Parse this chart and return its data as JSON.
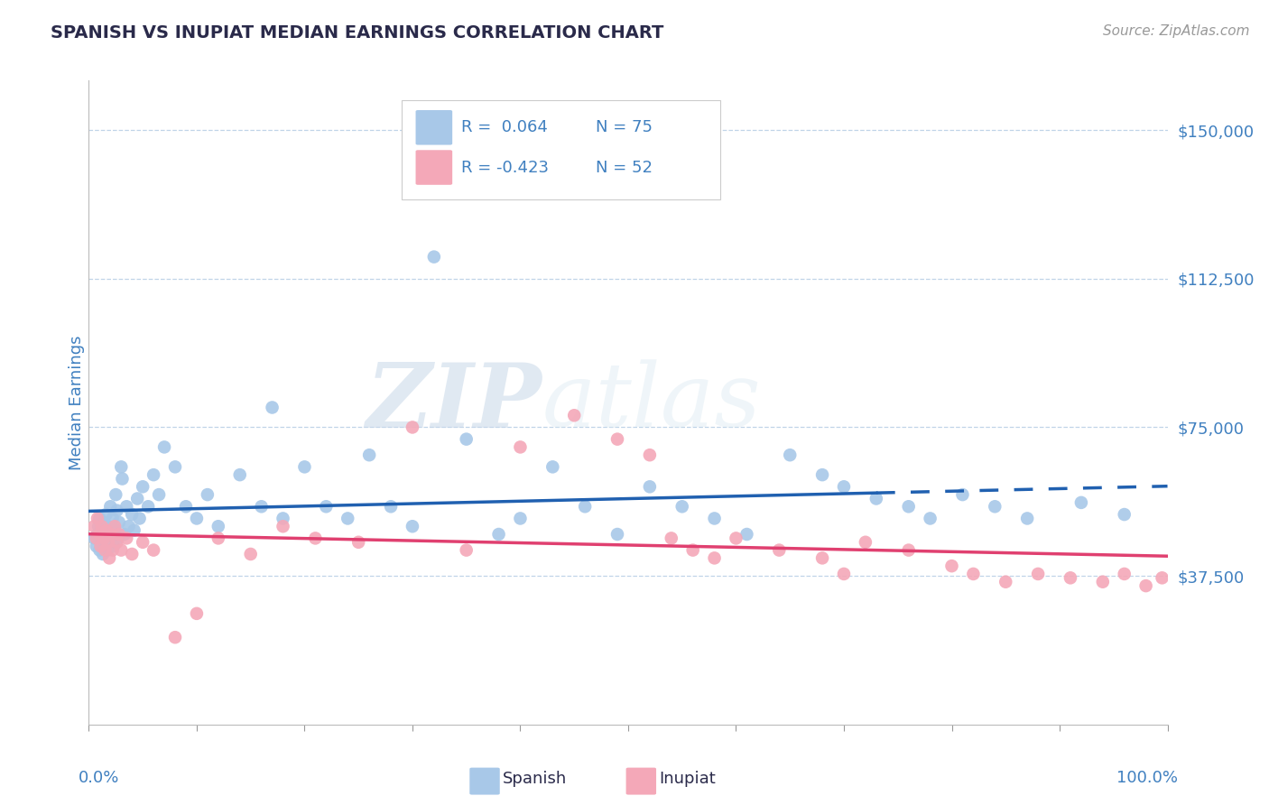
{
  "title": "SPANISH VS INUPIAT MEDIAN EARNINGS CORRELATION CHART",
  "source_text": "Source: ZipAtlas.com",
  "ylabel": "Median Earnings",
  "yticks": [
    0,
    37500,
    75000,
    112500,
    150000
  ],
  "ytick_labels": [
    "",
    "$37,500",
    "$75,000",
    "$112,500",
    "$150,000"
  ],
  "ylim": [
    0,
    162500
  ],
  "xlim": [
    0,
    1.0
  ],
  "spanish_color": "#a8c8e8",
  "inupiat_color": "#f4a8b8",
  "spanish_line_color": "#2060b0",
  "inupiat_line_color": "#e04070",
  "legend_R_spanish": "R =  0.064",
  "legend_N_spanish": "N = 75",
  "legend_R_inupiat": "R = -0.423",
  "legend_N_inupiat": "N = 52",
  "background_color": "#ffffff",
  "grid_color": "#c0d4e8",
  "title_color": "#2a2a4a",
  "axis_label_color": "#4080c0",
  "watermark_ZIP": "ZIP",
  "watermark_atlas": "atlas",
  "spanish_x": [
    0.005,
    0.007,
    0.008,
    0.009,
    0.01,
    0.01,
    0.011,
    0.012,
    0.013,
    0.014,
    0.015,
    0.016,
    0.017,
    0.018,
    0.019,
    0.02,
    0.021,
    0.022,
    0.023,
    0.024,
    0.025,
    0.026,
    0.027,
    0.028,
    0.03,
    0.031,
    0.033,
    0.035,
    0.037,
    0.04,
    0.042,
    0.045,
    0.047,
    0.05,
    0.055,
    0.06,
    0.065,
    0.07,
    0.08,
    0.09,
    0.1,
    0.11,
    0.12,
    0.14,
    0.16,
    0.17,
    0.18,
    0.2,
    0.22,
    0.24,
    0.26,
    0.28,
    0.3,
    0.32,
    0.35,
    0.38,
    0.4,
    0.43,
    0.46,
    0.49,
    0.52,
    0.55,
    0.58,
    0.61,
    0.65,
    0.68,
    0.7,
    0.73,
    0.76,
    0.78,
    0.81,
    0.84,
    0.87,
    0.92,
    0.96
  ],
  "spanish_y": [
    47000,
    45000,
    48000,
    50000,
    52000,
    44000,
    49000,
    46000,
    43000,
    51000,
    47000,
    53000,
    44000,
    50000,
    46000,
    55000,
    48000,
    52000,
    45000,
    49000,
    58000,
    54000,
    47000,
    51000,
    65000,
    62000,
    48000,
    55000,
    50000,
    53000,
    49000,
    57000,
    52000,
    60000,
    55000,
    63000,
    58000,
    70000,
    65000,
    55000,
    52000,
    58000,
    50000,
    63000,
    55000,
    80000,
    52000,
    65000,
    55000,
    52000,
    68000,
    55000,
    50000,
    118000,
    72000,
    48000,
    52000,
    65000,
    55000,
    48000,
    60000,
    55000,
    52000,
    48000,
    68000,
    63000,
    60000,
    57000,
    55000,
    52000,
    58000,
    55000,
    52000,
    56000,
    53000
  ],
  "inupiat_x": [
    0.005,
    0.007,
    0.008,
    0.01,
    0.011,
    0.012,
    0.014,
    0.015,
    0.016,
    0.018,
    0.019,
    0.02,
    0.022,
    0.024,
    0.026,
    0.028,
    0.03,
    0.035,
    0.04,
    0.05,
    0.06,
    0.08,
    0.1,
    0.12,
    0.15,
    0.18,
    0.21,
    0.25,
    0.3,
    0.35,
    0.4,
    0.45,
    0.49,
    0.52,
    0.54,
    0.56,
    0.58,
    0.6,
    0.64,
    0.68,
    0.7,
    0.72,
    0.76,
    0.8,
    0.82,
    0.85,
    0.88,
    0.91,
    0.94,
    0.96,
    0.98,
    0.995
  ],
  "inupiat_y": [
    50000,
    47000,
    52000,
    48000,
    45000,
    50000,
    47000,
    44000,
    49000,
    46000,
    42000,
    48000,
    44000,
    50000,
    46000,
    48000,
    44000,
    47000,
    43000,
    46000,
    44000,
    22000,
    28000,
    47000,
    43000,
    50000,
    47000,
    46000,
    75000,
    44000,
    70000,
    78000,
    72000,
    68000,
    47000,
    44000,
    42000,
    47000,
    44000,
    42000,
    38000,
    46000,
    44000,
    40000,
    38000,
    36000,
    38000,
    37000,
    36000,
    38000,
    35000,
    37000
  ]
}
